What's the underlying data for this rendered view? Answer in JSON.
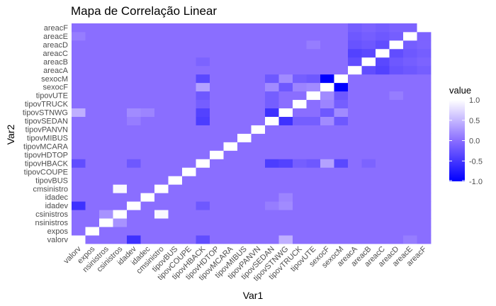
{
  "chart_data": {
    "type": "heatmap",
    "title": "Mapa de Correlação Linear",
    "xlabel": "Var1",
    "ylabel": "Var2",
    "variables": [
      "valorv",
      "expos",
      "nsinistros",
      "csinistros",
      "idadev",
      "idadec",
      "cmsinistro",
      "tipovBUS",
      "tipovCOUPE",
      "tipovHBACK",
      "tipovHDTOP",
      "tipovMCARA",
      "tipovMIBUS",
      "tipovPANVN",
      "tipovSEDAN",
      "tipovSTNWG",
      "tipovTRUCK",
      "tipovUTE",
      "sexocF",
      "sexocM",
      "areacA",
      "areacB",
      "areacC",
      "areacD",
      "areacE",
      "areacF"
    ],
    "legend": {
      "title": "value",
      "ticks": [
        "1.0",
        "0.5",
        "0.0",
        "-0.5",
        "-1.0"
      ],
      "range": [
        -1,
        1
      ],
      "colors": {
        "low": "#0000ff",
        "mid": "#8a6eff",
        "high": "#ffffff"
      }
    },
    "correlations": [
      {
        "pair": [
          "valorv",
          "idadev"
        ],
        "value": -0.55
      },
      {
        "pair": [
          "valorv",
          "tipovSTNWG"
        ],
        "value": 0.45
      },
      {
        "pair": [
          "valorv",
          "tipovHBACK"
        ],
        "value": -0.3
      },
      {
        "pair": [
          "nsinistros",
          "csinistros"
        ],
        "value": 0.25
      },
      {
        "pair": [
          "csinistros",
          "cmsinistro"
        ],
        "value": 0.95
      },
      {
        "pair": [
          "idadev",
          "tipovHBACK"
        ],
        "value": -0.2
      },
      {
        "pair": [
          "idadev",
          "tipovSEDAN"
        ],
        "value": 0.1
      },
      {
        "pair": [
          "idadev",
          "tipovSTNWG"
        ],
        "value": 0.2
      },
      {
        "pair": [
          "idadec",
          "tipovSTNWG"
        ],
        "value": 0.15
      },
      {
        "pair": [
          "tipovHBACK",
          "tipovSEDAN"
        ],
        "value": -0.45
      },
      {
        "pair": [
          "tipovHBACK",
          "tipovSTNWG"
        ],
        "value": -0.4
      },
      {
        "pair": [
          "tipovHBACK",
          "tipovUTE"
        ],
        "value": -0.2
      },
      {
        "pair": [
          "tipovHBACK",
          "tipovTRUCK"
        ],
        "value": -0.15
      },
      {
        "pair": [
          "tipovHBACK",
          "sexocF"
        ],
        "value": 0.35
      },
      {
        "pair": [
          "tipovHBACK",
          "sexocM"
        ],
        "value": -0.35
      },
      {
        "pair": [
          "tipovSEDAN",
          "tipovSTNWG"
        ],
        "value": -0.55
      },
      {
        "pair": [
          "tipovSEDAN",
          "tipovTRUCK"
        ],
        "value": -0.15
      },
      {
        "pair": [
          "tipovSEDAN",
          "tipovUTE"
        ],
        "value": -0.15
      },
      {
        "pair": [
          "tipovSEDAN",
          "sexocF"
        ],
        "value": 0.2
      },
      {
        "pair": [
          "tipovSEDAN",
          "sexocM"
        ],
        "value": -0.2
      },
      {
        "pair": [
          "tipovSTNWG",
          "sexocF"
        ],
        "value": -0.2
      },
      {
        "pair": [
          "tipovSTNWG",
          "sexocM"
        ],
        "value": 0.2
      },
      {
        "pair": [
          "tipovUTE",
          "sexocF"
        ],
        "value": 0.2
      },
      {
        "pair": [
          "tipovUTE",
          "sexocM"
        ],
        "value": -0.2
      },
      {
        "pair": [
          "tipovTRUCK",
          "sexocF"
        ],
        "value": 0.15
      },
      {
        "pair": [
          "tipovTRUCK",
          "sexocM"
        ],
        "value": -0.15
      },
      {
        "pair": [
          "sexocF",
          "sexocM"
        ],
        "value": -1.0
      },
      {
        "pair": [
          "areacA",
          "areacB"
        ],
        "value": -0.3
      },
      {
        "pair": [
          "areacA",
          "areacC"
        ],
        "value": -0.4
      },
      {
        "pair": [
          "areacA",
          "areacD"
        ],
        "value": -0.25
      },
      {
        "pair": [
          "areacA",
          "areacE"
        ],
        "value": -0.2
      },
      {
        "pair": [
          "areacA",
          "areacF"
        ],
        "value": -0.15
      },
      {
        "pair": [
          "areacB",
          "areacC"
        ],
        "value": -0.35
      },
      {
        "pair": [
          "areacB",
          "areacD"
        ],
        "value": -0.2
      },
      {
        "pair": [
          "areacB",
          "areacE"
        ],
        "value": -0.15
      },
      {
        "pair": [
          "areacB",
          "areacF"
        ],
        "value": -0.1
      },
      {
        "pair": [
          "areacC",
          "areacD"
        ],
        "value": -0.3
      },
      {
        "pair": [
          "areacC",
          "areacE"
        ],
        "value": -0.2
      },
      {
        "pair": [
          "areacC",
          "areacF"
        ],
        "value": -0.15
      },
      {
        "pair": [
          "areacD",
          "areacE"
        ],
        "value": -0.15
      },
      {
        "pair": [
          "areacD",
          "areacF"
        ],
        "value": -0.1
      },
      {
        "pair": [
          "areacE",
          "areacF"
        ],
        "value": -0.1
      },
      {
        "pair": [
          "areacD",
          "tipovUTE"
        ],
        "value": 0.1
      },
      {
        "pair": [
          "areacB",
          "tipovHBACK"
        ],
        "value": -0.1
      },
      {
        "pair": [
          "areacE",
          "valorv"
        ],
        "value": 0.1
      }
    ],
    "default_value": 0.0
  }
}
